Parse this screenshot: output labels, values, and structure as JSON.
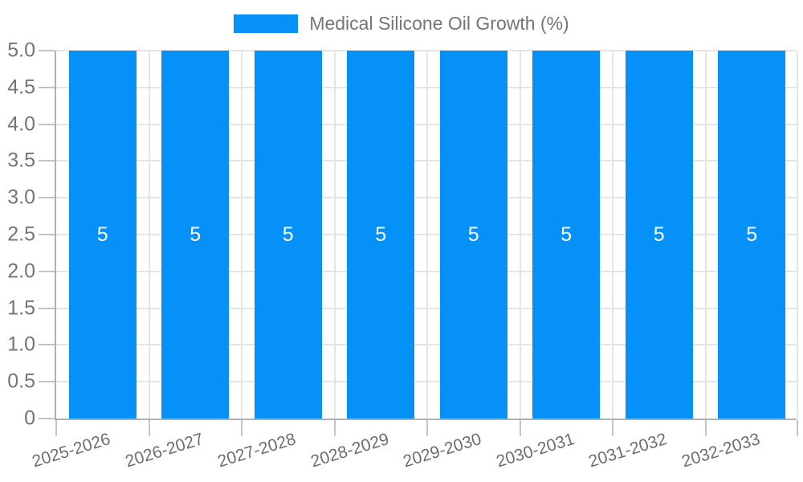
{
  "chart_data": {
    "type": "bar",
    "title": "Medical Silicone Oil Growth (%)",
    "legend_position": "top",
    "categories": [
      "2025-2026",
      "2026-2027",
      "2027-2028",
      "2028-2029",
      "2029-2030",
      "2030-2031",
      "2031-2032",
      "2032-2033"
    ],
    "series": [
      {
        "name": "Medical Silicone Oil Growth (%)",
        "values": [
          5,
          5,
          5,
          5,
          5,
          5,
          5,
          5
        ],
        "value_labels": [
          "5",
          "5",
          "5",
          "5",
          "5",
          "5",
          "5",
          "5"
        ]
      }
    ],
    "xlabel": "",
    "ylabel": "",
    "ylim": [
      0,
      5
    ],
    "grid": true,
    "y_ticks": [
      {
        "value": 0.0,
        "label": "0"
      },
      {
        "value": 0.5,
        "label": "0.5"
      },
      {
        "value": 1.0,
        "label": "1.0"
      },
      {
        "value": 1.5,
        "label": "1.5"
      },
      {
        "value": 2.0,
        "label": "2.0"
      },
      {
        "value": 2.5,
        "label": "2.5"
      },
      {
        "value": 3.0,
        "label": "3.0"
      },
      {
        "value": 3.5,
        "label": "3.5"
      },
      {
        "value": 4.0,
        "label": "4.0"
      },
      {
        "value": 4.5,
        "label": "4.5"
      },
      {
        "value": 5.0,
        "label": "5.0"
      }
    ],
    "colors": {
      "bar": "#0591f8",
      "value_label": "#ffffff",
      "grid_line": "#e5e5e5",
      "axis_line": "#b0b0b0",
      "tick_mark": "#c4c4c4",
      "tick_text": "#757575",
      "x_tick_text": "#6e6e6e",
      "background": "#ffffff"
    }
  }
}
